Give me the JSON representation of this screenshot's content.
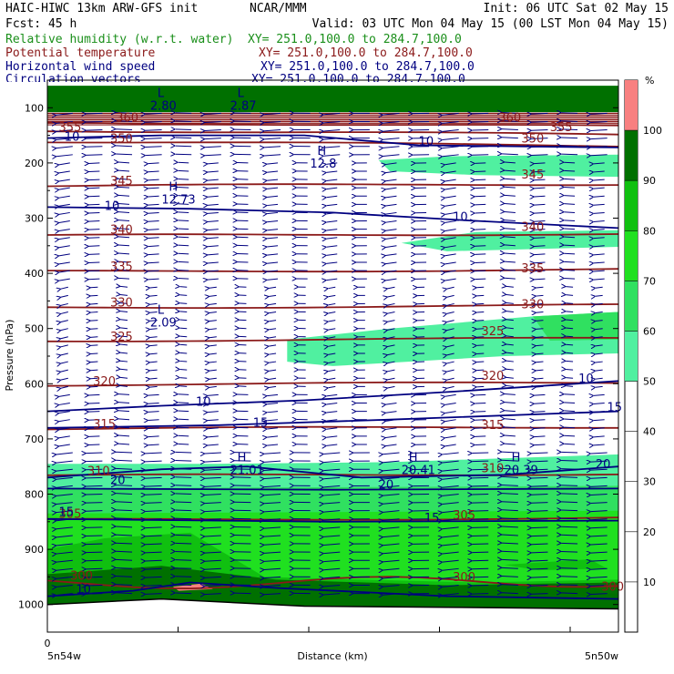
{
  "header": {
    "left": [
      "HAIC-HIWC 13km ARW-GFS init",
      "Fcst:   45 h"
    ],
    "center": "NCAR/MMM",
    "init": "Init: 06 UTC Sat 02 May 15",
    "valid": "Valid: 03 UTC Mon 04 May 15 (00 LST Mon 04 May 15)",
    "fields": [
      {
        "name": "Relative humidity (w.r.t. water)",
        "xy": "XY= 251.0,100.0 to 284.7,100.0",
        "color": "#1a8f1a"
      },
      {
        "name": "Potential temperature",
        "xy": "XY= 251.0,100.0 to 284.7,100.0",
        "color": "#8b1a1a"
      },
      {
        "name": "Horizontal wind speed",
        "xy": "XY= 251.0,100.0 to 284.7,100.0",
        "color": "#000080"
      },
      {
        "name": "Circulation vectors",
        "xy": "XY= 251.0,100.0 to 284.7,100.0",
        "color": "#000080"
      }
    ]
  },
  "chart_data": {
    "type": "heatmap",
    "xlabel": "Distance (km)",
    "ylabel": "Pressure (hPa)",
    "x_left_labels": [
      "0",
      "5n54w"
    ],
    "x_right_label": "5n50w",
    "y_ticks": [
      100,
      200,
      300,
      400,
      500,
      600,
      700,
      800,
      900,
      1000
    ],
    "y_scale": "linear",
    "colorbar": {
      "unit": "%",
      "ticks": [
        10,
        20,
        30,
        40,
        50,
        60,
        70,
        80,
        90,
        100
      ],
      "colors": [
        {
          "range": [
            50,
            60
          ],
          "color": "#50f0a0"
        },
        {
          "range": [
            60,
            70
          ],
          "color": "#30e060"
        },
        {
          "range": [
            70,
            80
          ],
          "color": "#20e020"
        },
        {
          "range": [
            80,
            90
          ],
          "color": "#10c010"
        },
        {
          "range": [
            90,
            100
          ],
          "color": "#007000"
        },
        {
          "range": [
            100,
            110
          ],
          "color": "#f88080"
        }
      ]
    },
    "theta_lines": [
      {
        "value": 360,
        "p": 130
      },
      {
        "value": 355,
        "p": 145
      },
      {
        "value": 350,
        "p": 165
      },
      {
        "value": 345,
        "p": 240
      },
      {
        "value": 340,
        "p": 330
      },
      {
        "value": 335,
        "p": 395
      },
      {
        "value": 330,
        "p": 460
      },
      {
        "value": 325,
        "p": 520
      },
      {
        "value": 320,
        "p": 600
      },
      {
        "value": 315,
        "p": 680
      },
      {
        "value": 310,
        "p": 765
      },
      {
        "value": 305,
        "p": 845
      },
      {
        "value": 300,
        "p": 960
      }
    ],
    "theta_labels": [
      {
        "text": "360",
        "x": 0.12,
        "p": 125
      },
      {
        "text": "360",
        "x": 0.79,
        "p": 125
      },
      {
        "text": "355",
        "x": 0.02,
        "p": 142
      },
      {
        "text": "355",
        "x": 0.88,
        "p": 142
      },
      {
        "text": "350",
        "x": 0.11,
        "p": 163
      },
      {
        "text": "350",
        "x": 0.83,
        "p": 163
      },
      {
        "text": "345",
        "x": 0.11,
        "p": 240
      },
      {
        "text": "345",
        "x": 0.83,
        "p": 228
      },
      {
        "text": "340",
        "x": 0.11,
        "p": 328
      },
      {
        "text": "340",
        "x": 0.83,
        "p": 323
      },
      {
        "text": "335",
        "x": 0.11,
        "p": 395
      },
      {
        "text": "335",
        "x": 0.83,
        "p": 398
      },
      {
        "text": "330",
        "x": 0.11,
        "p": 460
      },
      {
        "text": "330",
        "x": 0.83,
        "p": 463
      },
      {
        "text": "325",
        "x": 0.11,
        "p": 522
      },
      {
        "text": "325",
        "x": 0.76,
        "p": 512
      },
      {
        "text": "320",
        "x": 0.08,
        "p": 603
      },
      {
        "text": "320",
        "x": 0.76,
        "p": 593
      },
      {
        "text": "315",
        "x": 0.08,
        "p": 680
      },
      {
        "text": "315",
        "x": 0.76,
        "p": 682
      },
      {
        "text": "310",
        "x": 0.07,
        "p": 765
      },
      {
        "text": "310",
        "x": 0.76,
        "p": 760
      },
      {
        "text": "305",
        "x": 0.02,
        "p": 843
      },
      {
        "text": "305",
        "x": 0.71,
        "p": 845
      },
      {
        "text": "300",
        "x": 0.04,
        "p": 955
      },
      {
        "text": "300",
        "x": 0.71,
        "p": 958
      },
      {
        "text": "300",
        "x": 0.97,
        "p": 975
      }
    ],
    "wind_labels": [
      {
        "text": "10",
        "x": 0.03,
        "p": 160
      },
      {
        "text": "10",
        "x": 0.65,
        "p": 168
      },
      {
        "text": "10",
        "x": 0.1,
        "p": 285
      },
      {
        "text": "10",
        "x": 0.71,
        "p": 305
      },
      {
        "text": "10",
        "x": 0.26,
        "p": 640
      },
      {
        "text": "10",
        "x": 0.93,
        "p": 598
      },
      {
        "text": "15",
        "x": 0.36,
        "p": 678
      },
      {
        "text": "15",
        "x": 0.98,
        "p": 650
      },
      {
        "text": "20",
        "x": 0.11,
        "p": 782
      },
      {
        "text": "20",
        "x": 0.58,
        "p": 790
      },
      {
        "text": "20",
        "x": 0.96,
        "p": 753
      },
      {
        "text": "15",
        "x": 0.66,
        "p": 850
      },
      {
        "text": "15",
        "x": 0.02,
        "p": 840
      },
      {
        "text": "10",
        "x": 0.05,
        "p": 980
      }
    ],
    "extrema": [
      {
        "type": "L",
        "value": "2.09",
        "x": 0.18,
        "p": 493
      },
      {
        "type": "H",
        "value": "12.73",
        "x": 0.2,
        "p": 270
      },
      {
        "type": "H",
        "value": "12.8",
        "x": 0.46,
        "p": 205
      },
      {
        "type": "H",
        "value": "21.01",
        "x": 0.32,
        "p": 760
      },
      {
        "type": "H",
        "value": "20.41",
        "x": 0.62,
        "p": 760
      },
      {
        "type": "H",
        "value": "20.39",
        "x": 0.8,
        "p": 760
      },
      {
        "type": "L",
        "value": "2.87",
        "x": 0.32,
        "p": 100
      },
      {
        "type": "L",
        "value": "2.80",
        "x": 0.18,
        "p": 100
      }
    ]
  }
}
